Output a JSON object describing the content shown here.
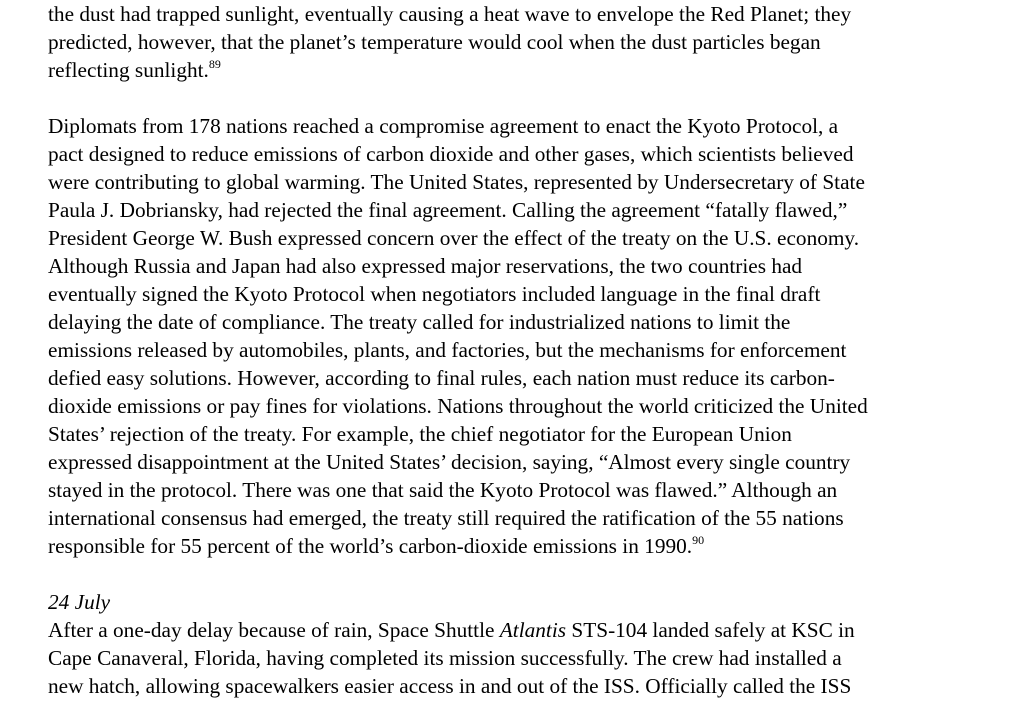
{
  "para1": {
    "l1": "the dust had trapped sunlight, eventually causing a heat wave to envelope the Red Planet; they",
    "l2": "predicted, however, that the planet’s temperature would cool when the dust particles began",
    "l3": "reflecting sunlight.",
    "fn": "89"
  },
  "para2": {
    "l1": "Diplomats from 178 nations reached a compromise agreement to enact the Kyoto Protocol, a",
    "l2": "pact designed to reduce emissions of carbon dioxide and other gases, which scientists believed",
    "l3": "were contributing to global warming. The United States, represented by Undersecretary of State",
    "l4": "Paula J. Dobriansky, had rejected the final agreement. Calling the agreement “fatally flawed,”",
    "l5": "President George W. Bush expressed concern over the effect of the treaty on the U.S. economy.",
    "l6": "Although Russia and Japan had also expressed major reservations, the two countries had",
    "l7": "eventually signed the Kyoto Protocol when negotiators included language in the final draft",
    "l8": "delaying the date of compliance. The treaty called for industrialized nations to limit the",
    "l9": "emissions released by automobiles, plants, and factories, but the mechanisms for enforcement",
    "l10": "defied easy solutions. However, according to final rules, each nation must reduce its carbon-",
    "l11": "dioxide emissions or pay fines for violations. Nations throughout the world criticized the United",
    "l12": "States’ rejection of the treaty. For example, the chief negotiator for the European Union",
    "l13": "expressed disappointment at the United States’ decision, saying, “Almost every single country",
    "l14": "stayed in the protocol. There was one that said the Kyoto Protocol was flawed.” Although an",
    "l15": "international consensus had emerged, the treaty still required the ratification of the 55 nations",
    "l16": "responsible for 55 percent of the world’s carbon-dioxide emissions in 1990.",
    "fn": "90"
  },
  "entry": {
    "date": "24 July",
    "l1_a": "After a one-day delay because of rain, Space Shuttle ",
    "l1_italic": "Atlantis",
    "l1_b": " STS-104 landed safely at KSC in",
    "l2": "Cape Canaveral, Florida, having completed its mission successfully. The crew had installed a",
    "l3": "new hatch, allowing spacewalkers easier access in and out of the ISS. Officially called the ISS"
  }
}
